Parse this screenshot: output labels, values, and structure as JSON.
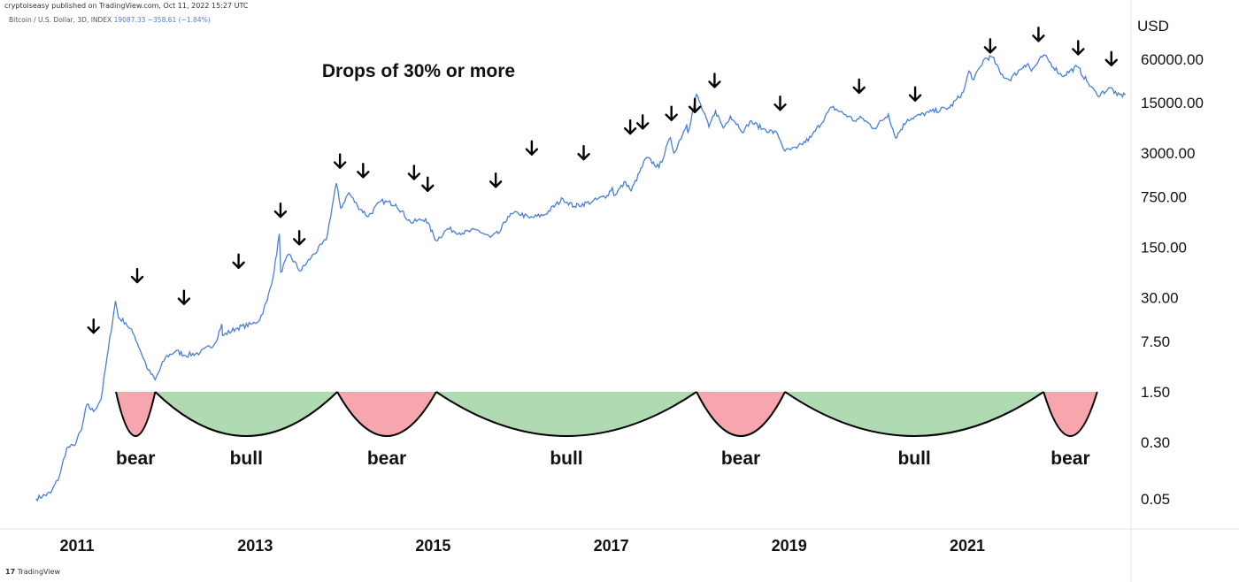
{
  "header": {
    "published": "cryptoiseasy published on TradingView.com, Oct 11, 2022 15:27 UTC",
    "symbol": "Bitcoin / U.S. Dollar, 3D, INDEX",
    "values": "19087.33 −358.61 (−1.84%)"
  },
  "footer": {
    "brand_mark": "17",
    "brand": "TradingView"
  },
  "colors": {
    "line": "#4a7fd6",
    "bear_fill": "#f7a6ad",
    "bull_fill": "#b0dbb2",
    "axis": "#e3e3e3"
  },
  "chart_data": {
    "type": "line",
    "title": "Drops of 30% or more",
    "y_unit": "USD",
    "y_scale": "log",
    "yticks": [
      "60000.00",
      "15000.00",
      "3000.00",
      "750.00",
      "150.00",
      "30.00",
      "7.50",
      "1.50",
      "0.30",
      "0.05"
    ],
    "ylim": [
      0.035,
      150000
    ],
    "xticks": [
      "2011",
      "2013",
      "2015",
      "2017",
      "2019",
      "2021"
    ],
    "xlim": [
      "2010-07-01",
      "2022-12-15"
    ],
    "series": [
      {
        "values": [
          [
            "2010-07-17",
            0.05
          ],
          [
            "2010-09-15",
            0.06
          ],
          [
            "2010-10-20",
            0.1
          ],
          [
            "2010-11-20",
            0.25
          ],
          [
            "2010-12-20",
            0.27
          ],
          [
            "2011-01-20",
            0.45
          ],
          [
            "2011-02-10",
            1.0
          ],
          [
            "2011-03-10",
            0.8
          ],
          [
            "2011-04-10",
            1.2
          ],
          [
            "2011-05-10",
            6.0
          ],
          [
            "2011-06-08",
            27.0
          ],
          [
            "2011-06-20",
            16.0
          ],
          [
            "2011-07-20",
            13.5
          ],
          [
            "2011-08-25",
            9.0
          ],
          [
            "2011-10-20",
            3.0
          ],
          [
            "2011-11-18",
            2.2
          ],
          [
            "2011-12-30",
            4.5
          ],
          [
            "2012-02-10",
            5.5
          ],
          [
            "2012-03-20",
            4.8
          ],
          [
            "2012-05-20",
            5.2
          ],
          [
            "2012-07-20",
            7.0
          ],
          [
            "2012-08-17",
            13.0
          ],
          [
            "2012-08-20",
            9.0
          ],
          [
            "2012-10-20",
            11.5
          ],
          [
            "2012-12-20",
            13.0
          ],
          [
            "2013-01-20",
            15.0
          ],
          [
            "2013-02-20",
            28.0
          ],
          [
            "2013-03-20",
            70.0
          ],
          [
            "2013-04-10",
            230.0
          ],
          [
            "2013-04-16",
            68.0
          ],
          [
            "2013-05-20",
            120.0
          ],
          [
            "2013-07-05",
            70.0
          ],
          [
            "2013-08-20",
            110.0
          ],
          [
            "2013-10-20",
            190.0
          ],
          [
            "2013-11-30",
            1150.0
          ],
          [
            "2013-12-18",
            520.0
          ],
          [
            "2014-01-20",
            850.0
          ],
          [
            "2014-02-25",
            560.0
          ],
          [
            "2014-04-10",
            400.0
          ],
          [
            "2014-06-01",
            650.0
          ],
          [
            "2014-08-01",
            590.0
          ],
          [
            "2014-10-01",
            330.0
          ],
          [
            "2014-12-01",
            370.0
          ],
          [
            "2015-01-14",
            185.0
          ],
          [
            "2015-03-01",
            270.0
          ],
          [
            "2015-05-01",
            235.0
          ],
          [
            "2015-07-01",
            260.0
          ],
          [
            "2015-08-24",
            205.0
          ],
          [
            "2015-10-01",
            240.0
          ],
          [
            "2015-11-04",
            400.0
          ],
          [
            "2015-12-15",
            450.0
          ],
          [
            "2016-02-01",
            380.0
          ],
          [
            "2016-04-01",
            420.0
          ],
          [
            "2016-06-17",
            700.0
          ],
          [
            "2016-08-02",
            550.0
          ],
          [
            "2016-10-15",
            640.0
          ],
          [
            "2016-12-15",
            780.0
          ],
          [
            "2017-01-05",
            1000.0
          ],
          [
            "2017-01-12",
            780.0
          ],
          [
            "2017-03-01",
            1200.0
          ],
          [
            "2017-03-24",
            900.0
          ],
          [
            "2017-05-25",
            2600.0
          ],
          [
            "2017-07-16",
            1900.0
          ],
          [
            "2017-09-01",
            4900.0
          ],
          [
            "2017-09-15",
            3000.0
          ],
          [
            "2017-11-07",
            7500.0
          ],
          [
            "2017-11-12",
            5800.0
          ],
          [
            "2017-12-17",
            19500.0
          ],
          [
            "2018-02-06",
            6900.0
          ],
          [
            "2018-03-05",
            11500.0
          ],
          [
            "2018-04-06",
            6700.0
          ],
          [
            "2018-05-05",
            9800.0
          ],
          [
            "2018-06-29",
            5900.0
          ],
          [
            "2018-07-24",
            8300.0
          ],
          [
            "2018-09-15",
            6500.0
          ],
          [
            "2018-11-14",
            5600.0
          ],
          [
            "2018-12-15",
            3200.0
          ],
          [
            "2019-02-01",
            3500.0
          ],
          [
            "2019-04-01",
            5000.0
          ],
          [
            "2019-06-26",
            13000.0
          ],
          [
            "2019-09-01",
            9700.0
          ],
          [
            "2019-09-25",
            8400.0
          ],
          [
            "2019-10-26",
            9200.0
          ],
          [
            "2019-12-17",
            6600.0
          ],
          [
            "2020-02-12",
            10400.0
          ],
          [
            "2020-03-12",
            4900.0
          ],
          [
            "2020-05-01",
            8800.0
          ],
          [
            "2020-07-27",
            11000.0
          ],
          [
            "2020-10-21",
            12800.0
          ],
          [
            "2020-12-16",
            21000.0
          ],
          [
            "2021-01-08",
            41000.0
          ],
          [
            "2021-01-27",
            31000.0
          ],
          [
            "2021-03-13",
            61000.0
          ],
          [
            "2021-04-14",
            64000.0
          ],
          [
            "2021-05-19",
            37000.0
          ],
          [
            "2021-06-22",
            31000.0
          ],
          [
            "2021-08-23",
            49000.0
          ],
          [
            "2021-09-07",
            52000.0
          ],
          [
            "2021-09-21",
            41000.0
          ],
          [
            "2021-11-10",
            68000.0
          ],
          [
            "2022-01-24",
            35000.0
          ],
          [
            "2022-03-28",
            47000.0
          ],
          [
            "2022-05-12",
            28000.0
          ],
          [
            "2022-06-18",
            19000.0
          ],
          [
            "2022-08-15",
            24000.0
          ],
          [
            "2022-09-07",
            18800.0
          ],
          [
            "2022-10-11",
            19087.33
          ]
        ]
      }
    ],
    "drop_arrows": [
      [
        "2011-03-10",
        12.0
      ],
      [
        "2011-09-05",
        60.0
      ],
      [
        "2012-03-15",
        30.0
      ],
      [
        "2012-10-25",
        95.0
      ],
      [
        "2013-04-15",
        480.0
      ],
      [
        "2013-07-01",
        200.0
      ],
      [
        "2013-12-15",
        2300.0
      ],
      [
        "2014-03-20",
        1700.0
      ],
      [
        "2014-10-15",
        1600.0
      ],
      [
        "2014-12-10",
        1100.0
      ],
      [
        "2015-09-15",
        1250.0
      ],
      [
        "2016-02-10",
        3500.0
      ],
      [
        "2016-09-10",
        3000.0
      ],
      [
        "2017-03-20",
        6800.0
      ],
      [
        "2017-05-10",
        8000.0
      ],
      [
        "2017-09-05",
        10500.0
      ],
      [
        "2017-12-10",
        13500.0
      ],
      [
        "2018-03-01",
        30000.0
      ],
      [
        "2018-11-25",
        14500.0
      ],
      [
        "2019-10-15",
        25000.0
      ],
      [
        "2020-06-01",
        19500.0
      ],
      [
        "2021-04-05",
        90000.0
      ],
      [
        "2021-10-20",
        130000.0
      ],
      [
        "2022-04-01",
        85000.0
      ],
      [
        "2022-08-15",
        60000.0
      ]
    ],
    "cycles": [
      {
        "label": "bear",
        "start": "2011-06-10",
        "end": "2011-11-18"
      },
      {
        "label": "bull",
        "start": "2011-11-18",
        "end": "2013-12-04"
      },
      {
        "label": "bear",
        "start": "2013-12-04",
        "end": "2015-01-14"
      },
      {
        "label": "bull",
        "start": "2015-01-14",
        "end": "2017-12-17"
      },
      {
        "label": "bear",
        "start": "2017-12-17",
        "end": "2018-12-15"
      },
      {
        "label": "bull",
        "start": "2018-12-15",
        "end": "2021-11-10"
      },
      {
        "label": "bear",
        "start": "2021-11-10",
        "end": "2022-06-18"
      }
    ]
  }
}
